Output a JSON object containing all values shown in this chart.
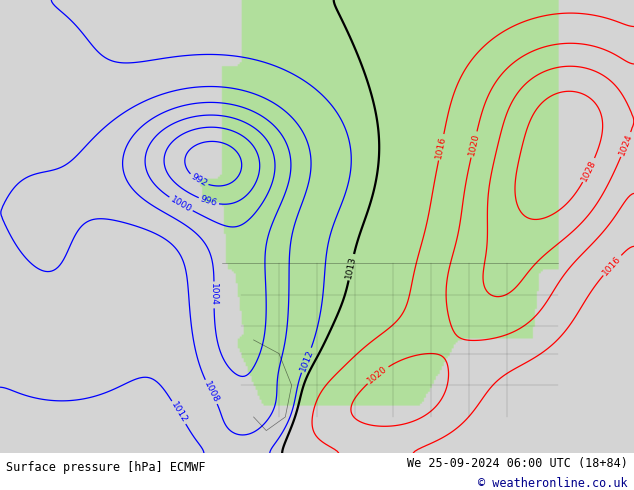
{
  "title_left": "Surface pressure [hPa] ECMWF",
  "title_right": "We 25-09-2024 06:00 UTC (18+84)",
  "copyright": "© weatheronline.co.uk",
  "land_color_rgb": [
    0.698,
    0.875,
    0.612
  ],
  "ocean_color_rgb": [
    0.835,
    0.835,
    0.835
  ],
  "fig_width": 6.34,
  "fig_height": 4.9,
  "dpi": 100,
  "copyright_color": "#00008b",
  "footer_line1_color": "#000000",
  "footer_line2_color": "#000000"
}
